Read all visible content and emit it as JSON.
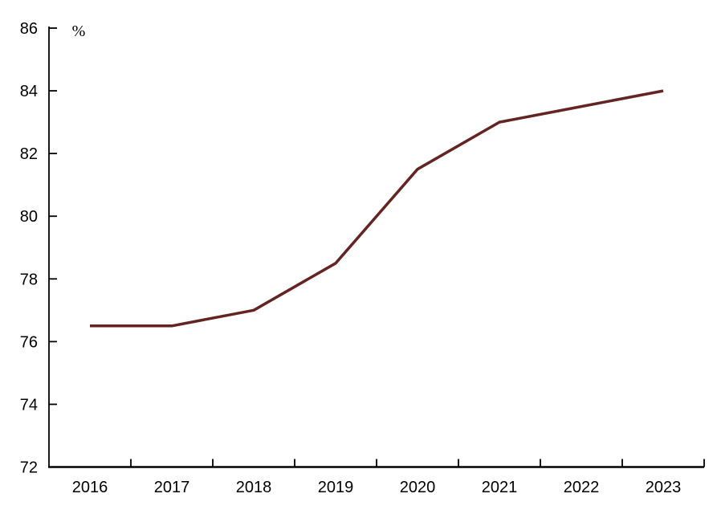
{
  "chart_data": {
    "type": "line",
    "title": "",
    "ylabel": "%",
    "xlabel": "",
    "categories": [
      "2016",
      "2017",
      "2018",
      "2019",
      "2020",
      "2021",
      "2022",
      "2023"
    ],
    "values": [
      76.5,
      76.5,
      77.0,
      78.5,
      81.5,
      83.0,
      83.5,
      84.0
    ],
    "ylim": [
      72,
      86
    ],
    "ytick_step": 2,
    "yticks": [
      72,
      74,
      76,
      78,
      80,
      82,
      84,
      86
    ],
    "grid": false,
    "legend_position": "none",
    "line_color": "#632423",
    "axis_color": "#000000",
    "label_color": "#000000"
  }
}
